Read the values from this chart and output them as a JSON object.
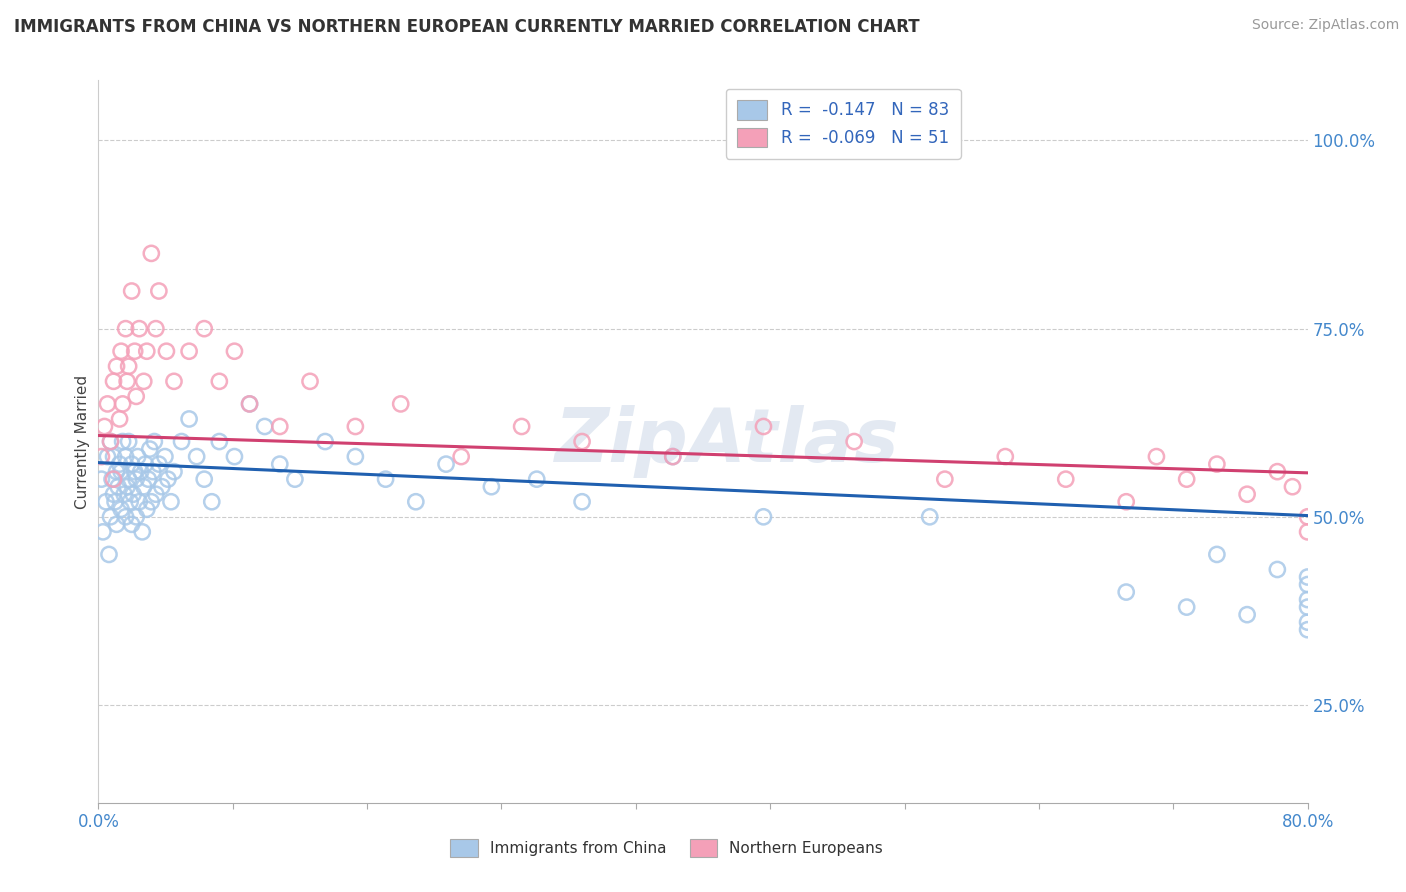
{
  "title": "IMMIGRANTS FROM CHINA VS NORTHERN EUROPEAN CURRENTLY MARRIED CORRELATION CHART",
  "source": "Source: ZipAtlas.com",
  "ylabel": "Currently Married",
  "xlim": [
    0.0,
    0.8
  ],
  "ylim": [
    0.12,
    1.08
  ],
  "yticks": [
    0.25,
    0.5,
    0.75,
    1.0
  ],
  "ytick_labels": [
    "25.0%",
    "50.0%",
    "75.0%",
    "100.0%"
  ],
  "color_china": "#a8c8e8",
  "color_northern": "#f4a0b8",
  "line_china": "#2060b0",
  "line_northern": "#d04070",
  "watermark": "ZipAtlas",
  "china_intercept": 0.572,
  "china_slope": -0.085,
  "northern_intercept": 0.605,
  "northern_slope": -0.04,
  "china_x": [
    0.002,
    0.003,
    0.005,
    0.006,
    0.007,
    0.008,
    0.008,
    0.009,
    0.01,
    0.01,
    0.011,
    0.012,
    0.012,
    0.013,
    0.014,
    0.015,
    0.015,
    0.016,
    0.017,
    0.018,
    0.018,
    0.019,
    0.02,
    0.02,
    0.021,
    0.022,
    0.022,
    0.023,
    0.024,
    0.025,
    0.025,
    0.026,
    0.027,
    0.028,
    0.029,
    0.03,
    0.031,
    0.032,
    0.033,
    0.034,
    0.035,
    0.036,
    0.037,
    0.038,
    0.04,
    0.042,
    0.044,
    0.046,
    0.048,
    0.05,
    0.055,
    0.06,
    0.065,
    0.07,
    0.075,
    0.08,
    0.09,
    0.1,
    0.11,
    0.12,
    0.13,
    0.15,
    0.17,
    0.19,
    0.21,
    0.23,
    0.26,
    0.29,
    0.32,
    0.38,
    0.44,
    0.55,
    0.68,
    0.72,
    0.74,
    0.76,
    0.78,
    0.8,
    0.8,
    0.8,
    0.8,
    0.8,
    0.8
  ],
  "china_y": [
    0.55,
    0.48,
    0.52,
    0.58,
    0.45,
    0.6,
    0.5,
    0.55,
    0.53,
    0.58,
    0.52,
    0.56,
    0.49,
    0.54,
    0.57,
    0.51,
    0.56,
    0.6,
    0.53,
    0.58,
    0.5,
    0.54,
    0.55,
    0.6,
    0.52,
    0.57,
    0.49,
    0.53,
    0.56,
    0.5,
    0.55,
    0.58,
    0.52,
    0.56,
    0.48,
    0.54,
    0.57,
    0.51,
    0.55,
    0.59,
    0.52,
    0.56,
    0.6,
    0.53,
    0.57,
    0.54,
    0.58,
    0.55,
    0.52,
    0.56,
    0.6,
    0.63,
    0.58,
    0.55,
    0.52,
    0.6,
    0.58,
    0.65,
    0.62,
    0.57,
    0.55,
    0.6,
    0.58,
    0.55,
    0.52,
    0.57,
    0.54,
    0.55,
    0.52,
    0.58,
    0.5,
    0.5,
    0.4,
    0.38,
    0.45,
    0.37,
    0.43,
    0.38,
    0.42,
    0.36,
    0.41,
    0.35,
    0.39
  ],
  "northern_x": [
    0.002,
    0.004,
    0.006,
    0.008,
    0.01,
    0.01,
    0.012,
    0.014,
    0.015,
    0.016,
    0.018,
    0.019,
    0.02,
    0.022,
    0.024,
    0.025,
    0.027,
    0.03,
    0.032,
    0.035,
    0.038,
    0.04,
    0.045,
    0.05,
    0.06,
    0.07,
    0.08,
    0.09,
    0.1,
    0.12,
    0.14,
    0.17,
    0.2,
    0.24,
    0.28,
    0.32,
    0.38,
    0.44,
    0.5,
    0.56,
    0.6,
    0.64,
    0.68,
    0.7,
    0.72,
    0.74,
    0.76,
    0.78,
    0.79,
    0.8,
    0.8
  ],
  "northern_y": [
    0.58,
    0.62,
    0.65,
    0.6,
    0.68,
    0.55,
    0.7,
    0.63,
    0.72,
    0.65,
    0.75,
    0.68,
    0.7,
    0.8,
    0.72,
    0.66,
    0.75,
    0.68,
    0.72,
    0.85,
    0.75,
    0.8,
    0.72,
    0.68,
    0.72,
    0.75,
    0.68,
    0.72,
    0.65,
    0.62,
    0.68,
    0.62,
    0.65,
    0.58,
    0.62,
    0.6,
    0.58,
    0.62,
    0.6,
    0.55,
    0.58,
    0.55,
    0.52,
    0.58,
    0.55,
    0.57,
    0.53,
    0.56,
    0.54,
    0.5,
    0.48
  ]
}
